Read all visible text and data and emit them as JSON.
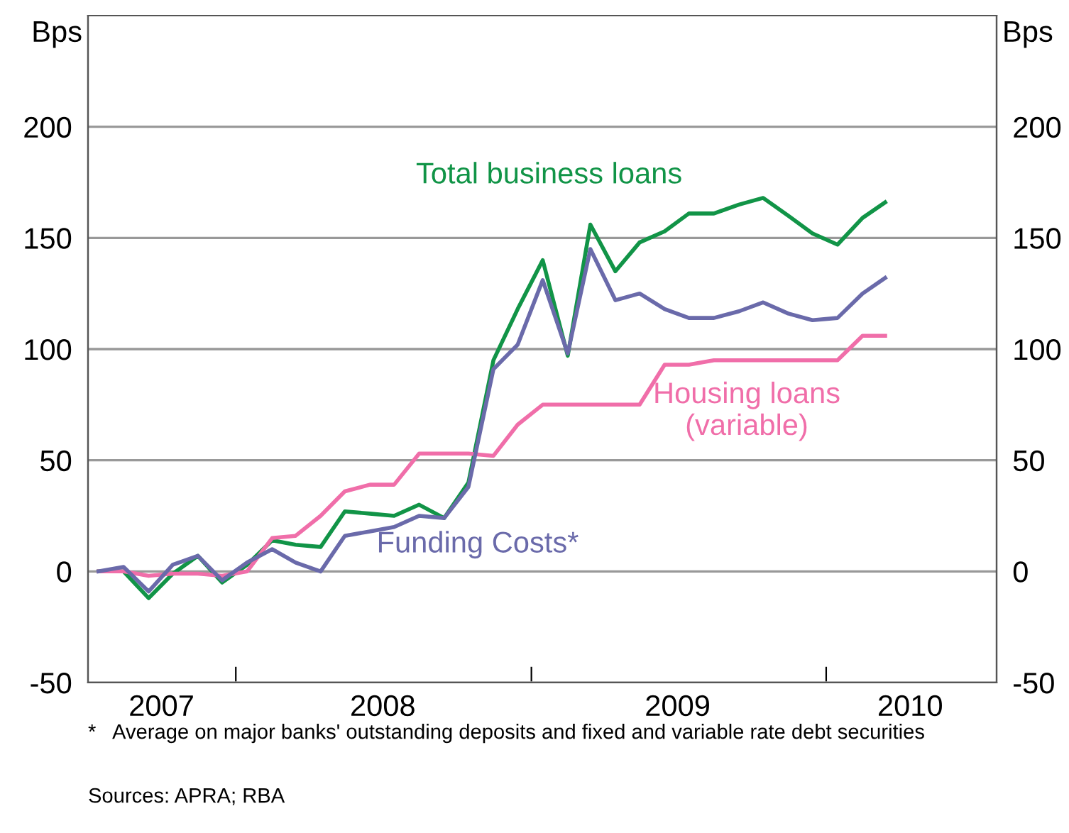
{
  "chart_data": {
    "type": "line",
    "ylabel": "Bps",
    "y2label": "Bps",
    "x": [
      "2007-07-15",
      "2007-08-15",
      "2007-09-15",
      "2007-10-15",
      "2007-11-15",
      "2007-12-15",
      "2008-01-15",
      "2008-02-15",
      "2008-03-15",
      "2008-04-15",
      "2008-05-15",
      "2008-06-15",
      "2008-07-15",
      "2008-08-15",
      "2008-09-15",
      "2008-10-15",
      "2008-11-15",
      "2008-12-15",
      "2009-01-15",
      "2009-02-15",
      "2009-03-15",
      "2009-04-15",
      "2009-05-15",
      "2009-06-15",
      "2009-07-15",
      "2009-08-15",
      "2009-09-15",
      "2009-10-15",
      "2009-11-15",
      "2009-12-15",
      "2010-01-15",
      "2010-02-15",
      "2010-03-15"
    ],
    "series": [
      {
        "name": "Total business loans",
        "color": "#119447",
        "values": [
          0,
          0,
          -12,
          -1,
          7,
          -5,
          3,
          14,
          12,
          11,
          27,
          26,
          25,
          30,
          24,
          40,
          95,
          118,
          140,
          97,
          156,
          135,
          148,
          153,
          161,
          161,
          165,
          168,
          160,
          152,
          147,
          159,
          166
        ]
      },
      {
        "name": "Housing loans\n(variable)",
        "color": "#f06ea9",
        "values": [
          0,
          0,
          -2,
          -1,
          -1,
          -2,
          0,
          15,
          16,
          25,
          36,
          39,
          39,
          53,
          53,
          53,
          52,
          66,
          75,
          75,
          75,
          75,
          75,
          93,
          93,
          95,
          95,
          95,
          95,
          95,
          95,
          106,
          106
        ]
      },
      {
        "name": "Funding Costs*",
        "color": "#6a6aaa",
        "values": [
          0,
          2,
          -9,
          3,
          7,
          -4,
          4,
          10,
          4,
          0,
          16,
          18,
          20,
          25,
          24,
          38,
          91,
          102,
          131,
          98,
          145,
          122,
          125,
          118,
          114,
          114,
          117,
          121,
          116,
          113,
          114,
          125,
          132
        ]
      }
    ],
    "xlim": [
      "2007-07-02",
      "2010-07-31"
    ],
    "xticks": [
      {
        "value": "2008-01-01",
        "label": null
      },
      {
        "value": "2009-01-01",
        "label": null
      },
      {
        "value": "2010-01-01",
        "label": null
      },
      {
        "value": "2007-10-01",
        "label": "2007"
      },
      {
        "value": "2008-07-01",
        "label": "2008"
      },
      {
        "value": "2009-07-01",
        "label": "2009"
      },
      {
        "value": "2010-04-15",
        "label": "2010"
      }
    ],
    "ylim": [
      -50,
      250
    ],
    "yticks": [
      -50,
      0,
      50,
      100,
      150,
      200
    ],
    "y2lim": [
      -50,
      250
    ],
    "y2ticks": [
      -50,
      0,
      50,
      100,
      150,
      200
    ],
    "grid": "y",
    "legend": false,
    "annotations": [
      "*   Average on major banks' outstanding deposits and fixed and variable rate debt securities",
      "Sources: APRA; RBA"
    ]
  }
}
